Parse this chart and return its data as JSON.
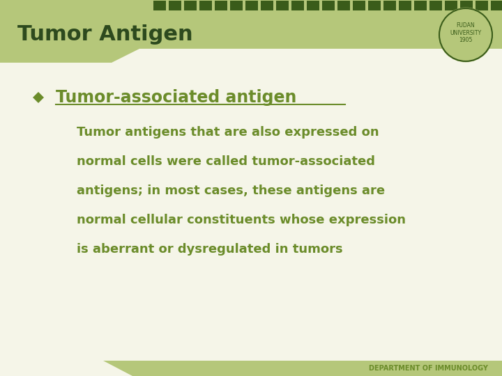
{
  "title": "Tumor Antigen",
  "title_color": "#2d4a1e",
  "header_bg_color": "#b5c77a",
  "body_bg_color": "#f5f5e8",
  "bullet_label": "Tumor-associated antigen",
  "bullet_color": "#6b8c2a",
  "body_text_lines": [
    "Tumor antigens that are also expressed on",
    "normal cells were called tumor-associated",
    "antigens; in most cases, these antigens are",
    "normal cellular constituents whose expression",
    "is aberrant or dysregulated in tumors"
  ],
  "body_text_color": "#6b8c2a",
  "footer_text": "DEPARTMENT OF IMMUNOLOGY",
  "footer_color": "#6b8c2a",
  "footer_bg_color": "#b5c77a",
  "dark_green": "#2d4a1e",
  "stripe_dark": "#3a5c1a"
}
